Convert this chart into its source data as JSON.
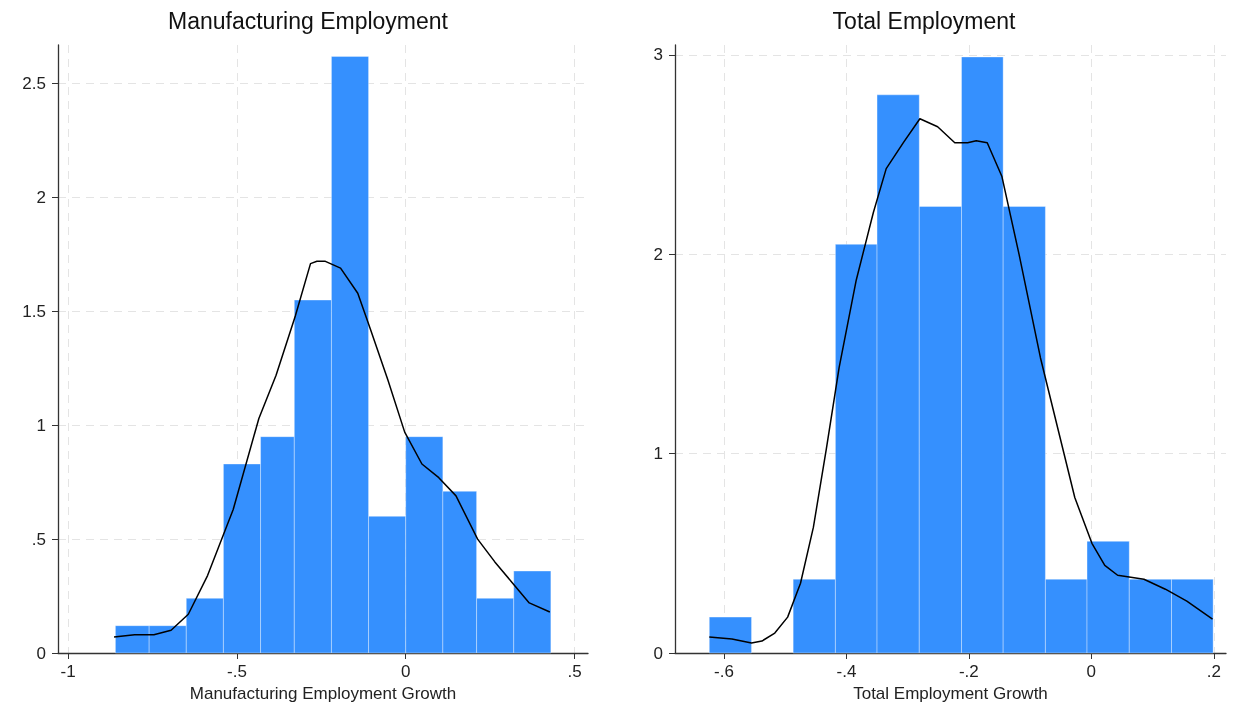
{
  "chart_data": [
    {
      "type": "histogram",
      "title": "Manufacturing Employment",
      "xlabel": "Manufacturing Employment Growth",
      "grid": true,
      "xlim": [
        -1.03,
        0.54
      ],
      "xticks": [
        {
          "value": -1,
          "label": "-1"
        },
        {
          "value": -0.5,
          "label": "-.5"
        },
        0,
        {
          "value": 0.5,
          "label": ".5"
        }
      ],
      "ylim": [
        0,
        2.67
      ],
      "yticks": [
        0,
        {
          "value": 0.5,
          "label": ".5"
        },
        1,
        1.5,
        2,
        2.5
      ],
      "series": [
        {
          "color": "#3590fe",
          "bins": [
            -0.86,
            -0.76,
            -0.65,
            -0.54,
            -0.43,
            -0.33,
            -0.22,
            -0.11,
            0.0,
            0.11,
            0.21,
            0.32,
            0.43
          ],
          "values": [
            0.12,
            0.12,
            0.24,
            0.83,
            0.95,
            1.55,
            2.62,
            0.6,
            0.95,
            0.71,
            0.24,
            0.36
          ]
        },
        {
          "type": "line",
          "color": "#000000",
          "x": [
            -0.864,
            -0.803,
            -0.746,
            -0.695,
            -0.644,
            -0.587,
            -0.511,
            -0.435,
            -0.384,
            -0.327,
            -0.282,
            -0.263,
            -0.238,
            -0.193,
            -0.142,
            -0.104,
            -0.053,
            -0.003,
            0.048,
            0.098,
            0.149,
            0.213,
            0.264,
            0.315,
            0.366,
            0.427
          ],
          "values": [
            0.07,
            0.08,
            0.08,
            0.1,
            0.17,
            0.34,
            0.63,
            1.03,
            1.22,
            1.48,
            1.71,
            1.72,
            1.72,
            1.69,
            1.58,
            1.42,
            1.2,
            0.97,
            0.83,
            0.77,
            0.69,
            0.5,
            0.4,
            0.31,
            0.22,
            0.18
          ]
        }
      ]
    },
    {
      "type": "histogram",
      "title": "Total Employment",
      "xlabel": "Total Employment Growth",
      "grid": true,
      "xlim": [
        -0.68,
        0.22
      ],
      "xticks": [
        {
          "value": -0.6,
          "label": "-.6"
        },
        {
          "value": -0.4,
          "label": "-.4"
        },
        {
          "value": -0.2,
          "label": "-.2"
        },
        0,
        {
          "value": 0.2,
          "label": ".2"
        }
      ],
      "ylim": [
        0,
        3.05
      ],
      "yticks": [
        0,
        1,
        2,
        3
      ],
      "series": [
        {
          "color": "#3590fe",
          "bins": [
            -0.624,
            -0.555,
            -0.487,
            -0.418,
            -0.35,
            -0.281,
            -0.212,
            -0.144,
            -0.075,
            -0.007,
            0.062,
            0.131,
            0.199
          ],
          "values": [
            0.18,
            0,
            0.37,
            2.05,
            2.8,
            2.24,
            2.99,
            2.24,
            0.37,
            0.56,
            0.37,
            0.37
          ]
        },
        {
          "type": "line",
          "color": "#000000",
          "x": [
            -0.624,
            -0.587,
            -0.555,
            -0.538,
            -0.517,
            -0.496,
            -0.475,
            -0.454,
            -0.433,
            -0.412,
            -0.384,
            -0.356,
            -0.335,
            -0.307,
            -0.28,
            -0.251,
            -0.223,
            -0.202,
            -0.188,
            -0.17,
            -0.146,
            -0.118,
            -0.083,
            -0.055,
            -0.027,
            0.001,
            0.022,
            0.043,
            0.086,
            0.121,
            0.156,
            0.198
          ],
          "values": [
            0.08,
            0.07,
            0.05,
            0.06,
            0.1,
            0.18,
            0.35,
            0.63,
            1.02,
            1.43,
            1.87,
            2.21,
            2.43,
            2.56,
            2.68,
            2.64,
            2.56,
            2.56,
            2.57,
            2.56,
            2.39,
            2.0,
            1.48,
            1.13,
            0.78,
            0.55,
            0.44,
            0.39,
            0.37,
            0.32,
            0.26,
            0.17
          ]
        }
      ]
    }
  ]
}
